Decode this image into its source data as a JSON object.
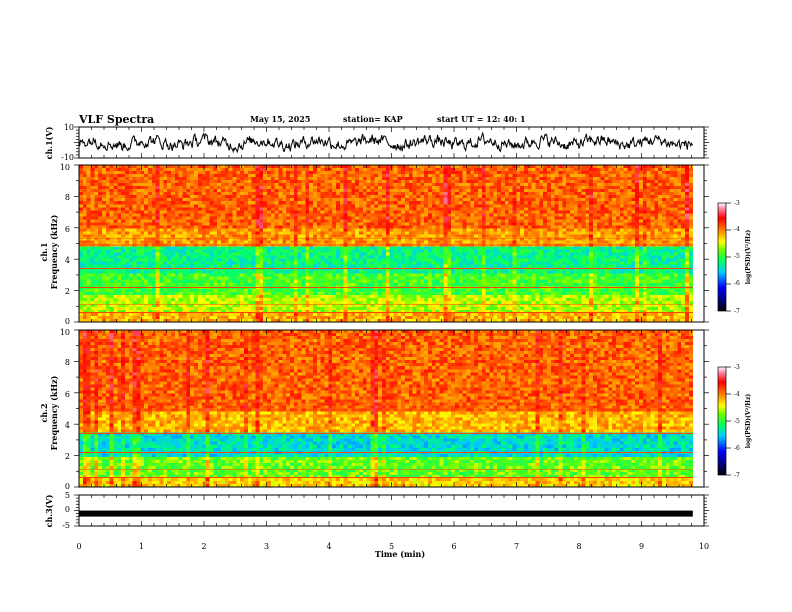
{
  "header": {
    "title": "VLF Spectra",
    "date": "May 15, 2025",
    "station": "station= KAP",
    "start": "start  UT  =   12: 40: 1"
  },
  "colors": {
    "waveform": "#000000",
    "colormap": [
      "#000066",
      "#0000ff",
      "#00ccff",
      "#00ff88",
      "#66ff00",
      "#ffff00",
      "#ffaa00",
      "#ff2200",
      "#ff0000",
      "#ff99cc",
      "#ffffff"
    ]
  },
  "chart_data": [
    {
      "type": "line",
      "name": "ch1-waveform",
      "ylabel": "ch.1(V)",
      "ylim": [
        -10,
        10
      ],
      "ytick_labels": [
        "10",
        "-10"
      ],
      "xlim": [
        0,
        10
      ]
    },
    {
      "type": "heatmap",
      "name": "ch1-spectrogram",
      "ylabel": "ch.1\nFrequency (kHz)",
      "ylim": [
        0,
        10
      ],
      "ytick_labels": [
        "0",
        "2",
        "4",
        "6",
        "8",
        "10"
      ],
      "colorbar": {
        "label": "log(PSD)(V²/Hz)",
        "range": [
          -7,
          -3
        ],
        "tick_labels": [
          "-3",
          "-4",
          "-5",
          "-6",
          "-7"
        ]
      },
      "bands": [
        {
          "range_khz": [
            0,
            0.6
          ],
          "level": -4.2
        },
        {
          "range_khz": [
            0.6,
            1.8
          ],
          "level": -4.6
        },
        {
          "range_khz": [
            1.8,
            3.0
          ],
          "level": -4.9
        },
        {
          "range_khz": [
            3.0,
            4.8
          ],
          "level": -5.2
        },
        {
          "range_khz": [
            4.8,
            6.0
          ],
          "level": -4.1
        },
        {
          "range_khz": [
            6.0,
            10.0
          ],
          "level": -3.9
        }
      ]
    },
    {
      "type": "heatmap",
      "name": "ch2-spectrogram",
      "ylabel": "ch.2\nFrequency (kHz)",
      "ylim": [
        0,
        10
      ],
      "ytick_labels": [
        "0",
        "2",
        "4",
        "6",
        "8",
        "10"
      ],
      "colorbar": {
        "label": "log(PSD)(V²/Hz)",
        "range": [
          -7,
          -3
        ],
        "tick_labels": [
          "-3",
          "-4",
          "-5",
          "-6",
          "-7"
        ]
      },
      "bands": [
        {
          "range_khz": [
            0,
            0.6
          ],
          "level": -4.3
        },
        {
          "range_khz": [
            0.6,
            2.0
          ],
          "level": -4.8
        },
        {
          "range_khz": [
            2.0,
            3.5
          ],
          "level": -5.4
        },
        {
          "range_khz": [
            3.5,
            4.8
          ],
          "level": -4.2
        },
        {
          "range_khz": [
            4.8,
            10.0
          ],
          "level": -3.9
        }
      ]
    },
    {
      "type": "line",
      "name": "ch3-waveform",
      "ylabel": "ch.3(V)",
      "ylim": [
        -5,
        5
      ],
      "ytick_labels": [
        "5",
        "0",
        "-5"
      ],
      "level": -1.0,
      "xlim": [
        0,
        10
      ]
    }
  ],
  "xaxis": {
    "label": "Time (min)",
    "range": [
      0,
      10
    ],
    "tick_labels": [
      "0",
      "1",
      "2",
      "3",
      "4",
      "5",
      "6",
      "7",
      "8",
      "9",
      "10"
    ],
    "data_end_min": 9.82
  }
}
